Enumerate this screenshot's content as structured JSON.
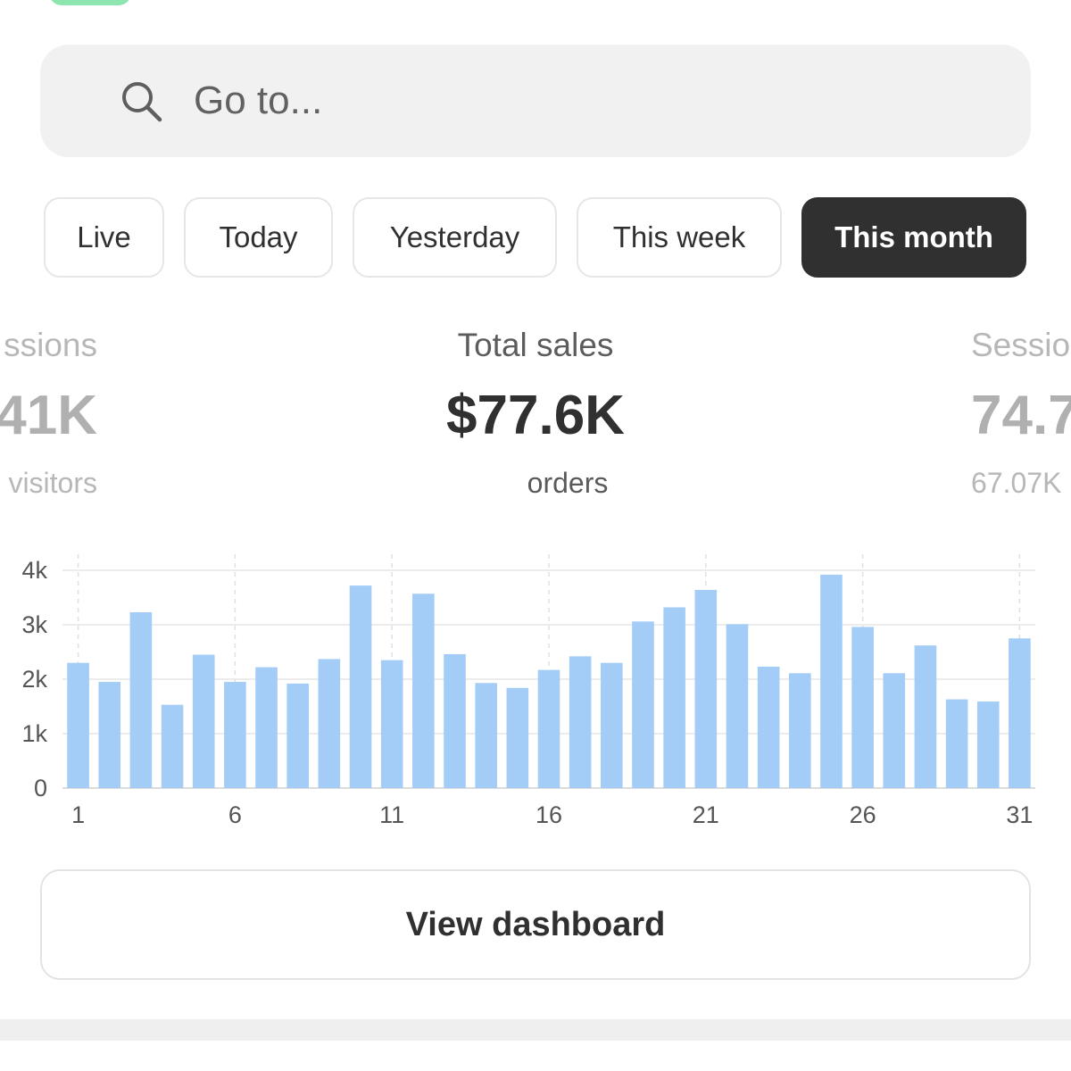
{
  "search": {
    "placeholder": "Go to..."
  },
  "tabs": [
    {
      "label": "Live",
      "active": false
    },
    {
      "label": "Today",
      "active": false
    },
    {
      "label": "Yesterday",
      "active": false
    },
    {
      "label": "This week",
      "active": false
    },
    {
      "label": "This month",
      "active": true
    }
  ],
  "metrics": {
    "left": {
      "label": "ssions",
      "value": "41K",
      "sub": "visitors"
    },
    "center": {
      "label": "Total sales",
      "value": "$77.6K",
      "sub": "orders"
    },
    "right": {
      "label": "Sessio",
      "value": "74.7",
      "sub": "67.07K"
    }
  },
  "chart_data": {
    "type": "bar",
    "categories": [
      "1",
      "2",
      "3",
      "4",
      "5",
      "6",
      "7",
      "8",
      "9",
      "10",
      "11",
      "12",
      "13",
      "14",
      "15",
      "16",
      "17",
      "18",
      "19",
      "20",
      "21",
      "22",
      "23",
      "24",
      "25",
      "26",
      "27",
      "28",
      "29",
      "30",
      "31"
    ],
    "values": [
      2300,
      1950,
      3230,
      1530,
      2450,
      1950,
      2220,
      1920,
      2370,
      3720,
      2350,
      3570,
      2460,
      1930,
      1840,
      2170,
      2420,
      2300,
      3060,
      3320,
      3640,
      3010,
      2230,
      2110,
      3920,
      2960,
      2110,
      2620,
      1630,
      1590,
      2750
    ],
    "x_tick_labels": [
      "1",
      "6",
      "11",
      "16",
      "21",
      "26",
      "31"
    ],
    "y_tick_labels": [
      "0",
      "1k",
      "2k",
      "3k",
      "4k"
    ],
    "ylim": [
      0,
      4000
    ],
    "grid": true,
    "bar_color": "#a3cdf7"
  },
  "dashboard_button": {
    "label": "View dashboard"
  },
  "colors": {
    "active_tab": "#303030",
    "accent_green": "#8de6b0",
    "bar": "#a3cdf7"
  }
}
